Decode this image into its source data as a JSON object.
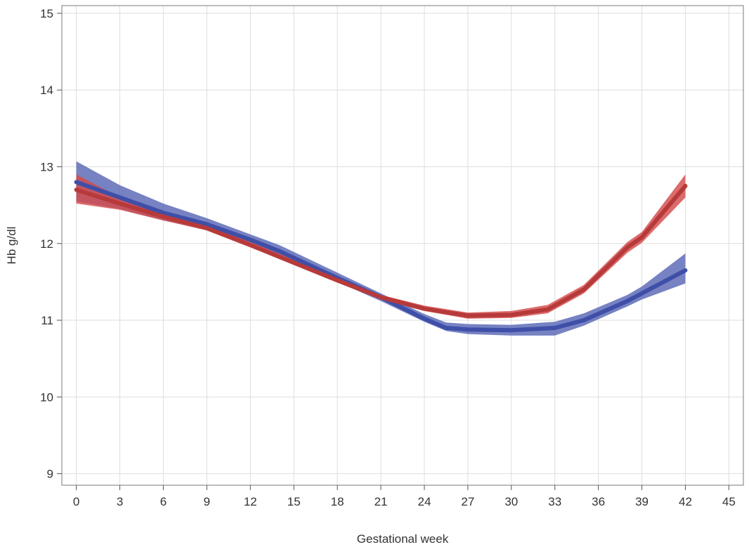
{
  "chart_data": {
    "type": "line",
    "xlabel": "Gestational week",
    "ylabel": "Hb g/dl",
    "xlim": [
      -1,
      46
    ],
    "ylim": [
      8.85,
      15.1
    ],
    "x_ticks": [
      0,
      3,
      6,
      9,
      12,
      15,
      18,
      21,
      24,
      27,
      30,
      33,
      36,
      39,
      42,
      45
    ],
    "y_ticks": [
      9,
      10,
      11,
      12,
      13,
      14,
      15
    ],
    "grid": true,
    "legend": "none",
    "series": [
      {
        "color": "#3f4fa8",
        "band_color": "#5867b5",
        "x": [
          0,
          3,
          6,
          9,
          12,
          14,
          18,
          21,
          24,
          25.5,
          27,
          30,
          33,
          35,
          38,
          39,
          42
        ],
        "y": [
          12.8,
          12.6,
          12.4,
          12.25,
          12.05,
          11.9,
          11.55,
          11.3,
          11.02,
          10.9,
          10.88,
          10.87,
          10.9,
          11.0,
          11.25,
          11.35,
          11.65
        ],
        "lower": [
          12.55,
          12.45,
          12.3,
          12.18,
          12.0,
          11.85,
          11.5,
          11.25,
          10.98,
          10.86,
          10.82,
          10.8,
          10.8,
          10.93,
          11.18,
          11.27,
          11.48
        ],
        "upper": [
          13.07,
          12.76,
          12.52,
          12.33,
          12.12,
          11.98,
          11.62,
          11.35,
          11.08,
          10.97,
          10.95,
          10.94,
          10.98,
          11.09,
          11.33,
          11.44,
          11.87
        ]
      },
      {
        "color": "#b73a3a",
        "band_color": "#d44a4a",
        "x": [
          0,
          3,
          6,
          9,
          12,
          15,
          18,
          21,
          24,
          27,
          30,
          32.5,
          35,
          38,
          39,
          42
        ],
        "y": [
          12.7,
          12.52,
          12.35,
          12.2,
          11.98,
          11.75,
          11.52,
          11.3,
          11.15,
          11.06,
          11.07,
          11.14,
          11.4,
          11.95,
          12.08,
          12.75
        ],
        "lower": [
          12.52,
          12.44,
          12.3,
          12.17,
          11.95,
          11.72,
          11.49,
          11.27,
          11.12,
          11.02,
          11.03,
          11.09,
          11.35,
          11.88,
          12.01,
          12.6
        ],
        "upper": [
          12.9,
          12.6,
          12.41,
          12.25,
          12.02,
          11.79,
          11.56,
          11.33,
          11.19,
          11.1,
          11.12,
          11.2,
          11.46,
          12.02,
          12.15,
          12.9
        ]
      }
    ]
  }
}
